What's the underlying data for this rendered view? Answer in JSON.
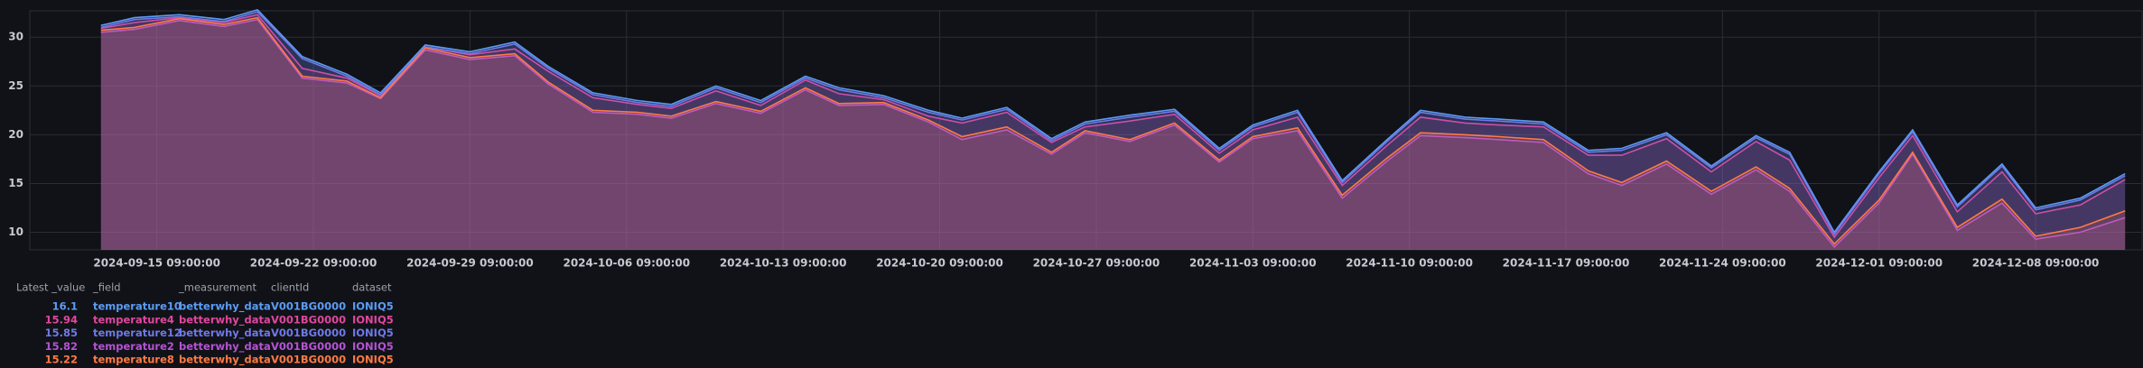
{
  "chart_data": {
    "type": "area",
    "x": [
      "2024-09-12 21:00:00",
      "2024-09-14 09:00:00",
      "2024-09-16 09:00:00",
      "2024-09-18 09:00:00",
      "2024-09-19 21:00:00",
      "2024-09-21 21:00:00",
      "2024-09-23 21:00:00",
      "2024-09-25 09:00:00",
      "2024-09-27 09:00:00",
      "2024-09-29 09:00:00",
      "2024-10-01 09:00:00",
      "2024-10-02 21:00:00",
      "2024-10-04 21:00:00",
      "2024-10-06 21:00:00",
      "2024-10-08 09:00:00",
      "2024-10-10 09:00:00",
      "2024-10-12 09:00:00",
      "2024-10-14 09:00:00",
      "2024-10-15 21:00:00",
      "2024-10-17 21:00:00",
      "2024-10-19 21:00:00",
      "2024-10-21 09:00:00",
      "2024-10-23 09:00:00",
      "2024-10-25 09:00:00",
      "2024-10-26 21:00:00",
      "2024-10-28 21:00:00",
      "2024-10-30 21:00:00",
      "2024-11-01 21:00:00",
      "2024-11-03 09:00:00",
      "2024-11-05 09:00:00",
      "2024-11-07 09:00:00",
      "2024-11-09 09:00:00",
      "2024-11-10 21:00:00",
      "2024-11-12 21:00:00",
      "2024-11-14 09:00:00",
      "2024-11-16 09:00:00",
      "2024-11-18 09:00:00",
      "2024-11-19 21:00:00",
      "2024-11-21 21:00:00",
      "2024-11-23 21:00:00",
      "2024-11-25 21:00:00",
      "2024-11-27 09:00:00",
      "2024-11-29 09:00:00",
      "2024-12-01 09:00:00",
      "2024-12-02 21:00:00",
      "2024-12-04 21:00:00",
      "2024-12-06 21:00:00",
      "2024-12-08 09:00:00",
      "2024-12-10 09:00:00",
      "2024-12-12 09:00:00"
    ],
    "series": [
      {
        "name": "temperature10",
        "color": "#5b9cf6",
        "latest": 16.1,
        "measurement": "betterwhy_data",
        "clientId": "V001BG0000",
        "dataset": "IONIQ5",
        "values": [
          31.2,
          32,
          32.3,
          31.8,
          32.8,
          28,
          26.2,
          24.3,
          29.2,
          28.5,
          29.5,
          27,
          24.3,
          23.5,
          23.1,
          25,
          23.5,
          26,
          24.8,
          24,
          22.5,
          21.7,
          22.8,
          19.6,
          21.3,
          22,
          22.6,
          18.6,
          21,
          22.5,
          15.3,
          19.5,
          22.5,
          21.8,
          21.6,
          21.3,
          18.4,
          18.6,
          20.2,
          16.8,
          19.9,
          18.2,
          10,
          16.2,
          20.5,
          12.8,
          17,
          12.5,
          13.5,
          16
        ]
      },
      {
        "name": "temperature4",
        "color": "#e0479e",
        "latest": 15.94,
        "measurement": "betterwhy_data",
        "clientId": "V001BG0000",
        "dataset": "IONIQ5",
        "values": [
          30.9,
          31.5,
          32,
          31.5,
          32.3,
          26.8,
          25.8,
          24,
          29,
          28.2,
          28.8,
          26.5,
          23.8,
          23.1,
          22.7,
          24.5,
          23,
          25.6,
          24.2,
          23.6,
          21.9,
          21.2,
          22.3,
          19.2,
          20.8,
          21.4,
          22.1,
          18.1,
          20.5,
          21.8,
          14.8,
          18.9,
          21.8,
          21.2,
          21,
          20.8,
          17.9,
          17.9,
          19.6,
          16.2,
          19.3,
          17.4,
          9.5,
          15.6,
          19.9,
          12.1,
          16.2,
          11.9,
          12.8,
          15.4
        ]
      },
      {
        "name": "temperature12",
        "color": "#7079e8",
        "latest": 15.85,
        "measurement": "betterwhy_data",
        "clientId": "V001BG0000",
        "dataset": "IONIQ5",
        "values": [
          31,
          31.8,
          32.1,
          31.6,
          32.6,
          27.8,
          26,
          24.1,
          29,
          28.3,
          29.3,
          26.8,
          24.1,
          23.3,
          22.9,
          24.8,
          23.3,
          25.8,
          24.6,
          23.8,
          22.3,
          21.5,
          22.6,
          19.4,
          21.1,
          21.8,
          22.4,
          18.4,
          20.8,
          22.3,
          15.1,
          19.3,
          22.3,
          21.6,
          21.4,
          21.1,
          18.2,
          18.4,
          20,
          16.6,
          19.7,
          18,
          9.8,
          16,
          20.3,
          12.6,
          16.8,
          12.3,
          13.3,
          15.8
        ]
      },
      {
        "name": "temperature2",
        "color": "#b553d6",
        "latest": 15.82,
        "measurement": "betterwhy_data",
        "clientId": "V001BG0000",
        "dataset": "IONIQ5",
        "values": [
          30.5,
          30.8,
          31.7,
          31.1,
          31.8,
          25.8,
          25.3,
          23.7,
          28.7,
          27.7,
          28.1,
          25.2,
          22.3,
          22.1,
          21.7,
          23.2,
          22.2,
          24.6,
          23,
          23.1,
          21.3,
          19.5,
          20.5,
          18,
          20.2,
          19.3,
          21,
          17.2,
          19.6,
          20.4,
          13.5,
          17.3,
          19.9,
          19.7,
          19.5,
          19.2,
          16,
          14.8,
          17,
          13.9,
          16.4,
          14.2,
          8.5,
          13,
          18,
          10.2,
          13,
          9.3,
          10,
          11.5
        ]
      },
      {
        "name": "temperature8",
        "color": "#ff7a45",
        "latest": 15.22,
        "measurement": "betterwhy_data",
        "clientId": "V001BG0000",
        "dataset": "IONIQ5",
        "values": [
          30.7,
          31,
          31.9,
          31.3,
          32,
          26,
          25.5,
          23.8,
          28.9,
          27.9,
          28.3,
          25.4,
          22.5,
          22.3,
          21.9,
          23.4,
          22.4,
          24.8,
          23.2,
          23.3,
          21.5,
          19.8,
          20.8,
          18.2,
          20.4,
          19.5,
          21.2,
          17.4,
          19.8,
          20.7,
          13.8,
          17.6,
          20.2,
          20,
          19.8,
          19.5,
          16.3,
          15.1,
          17.3,
          14.2,
          16.7,
          14.5,
          8.8,
          13.3,
          18.2,
          10.5,
          13.4,
          9.6,
          10.5,
          12.2
        ]
      }
    ],
    "xlim": [
      "2024-09-09 16:40:00",
      "2024-12-13 03:15:00"
    ],
    "xticks": [
      "2024-09-15 09:00:00",
      "2024-09-22 09:00:00",
      "2024-09-29 09:00:00",
      "2024-10-06 09:00:00",
      "2024-10-13 09:00:00",
      "2024-10-20 09:00:00",
      "2024-10-27 09:00:00",
      "2024-11-03 09:00:00",
      "2024-11-10 09:00:00",
      "2024-11-17 09:00:00",
      "2024-11-24 09:00:00",
      "2024-12-01 09:00:00",
      "2024-12-08 09:00:00"
    ],
    "ylim": [
      8.2,
      32.7
    ],
    "yticks": [
      10,
      15,
      20,
      25,
      30
    ],
    "grid": true,
    "legend_columns": [
      "Latest _value",
      "_field",
      "_measurement",
      "clientId",
      "dataset"
    ]
  }
}
